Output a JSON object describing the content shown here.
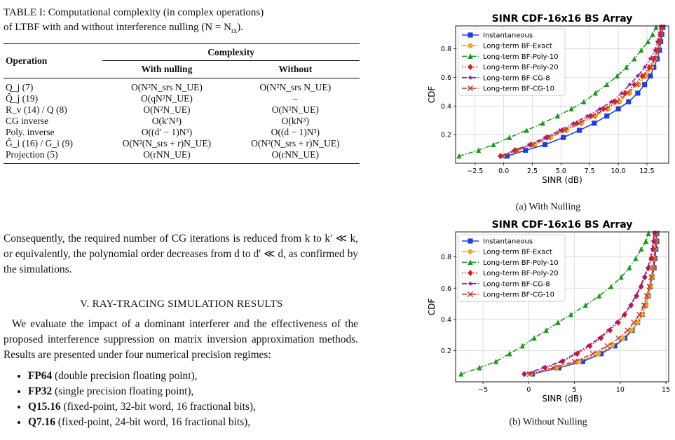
{
  "table": {
    "caption_line1": "TABLE I: Computational complexity (in complex operations)",
    "caption_line2": "of LTBF with and without interference nulling (N = N",
    "caption_sub": "rx",
    "caption_end": ").",
    "header": {
      "operation": "Operation",
      "complexity": "Complexity",
      "with": "With nulling",
      "without": "Without"
    },
    "rows": [
      {
        "op": "Q_j (7)",
        "with": "O(N²N_srs N_UE)",
        "without": "O(N²N_srs N_UE)"
      },
      {
        "op": "Q̂_j (19)",
        "with": "O(qN²N_UE)",
        "without": "–"
      },
      {
        "op": "R_v (14) / Q (8)",
        "with": "O(N²N_UE)",
        "without": "O(N²N_UE)"
      },
      {
        "op": "CG inverse",
        "with": "O(k′N³)",
        "without": "O(kN³)"
      },
      {
        "op": "Poly. inverse",
        "with": "O((d′ − 1)N³)",
        "without": "O((d − 1)N³)"
      },
      {
        "op": "Ĝ_i (16) / G_i (9)",
        "with": "O(N²(N_srs + r)N_UE)",
        "without": "O(N²(N_srs + r)N_UE)"
      },
      {
        "op": "Projection (5)",
        "with": "O(rNN_UE)",
        "without": "O(rNN_UE)"
      }
    ]
  },
  "paragraph1": "Consequently, the required number of CG iterations is reduced from k to k′ ≪ k, or equivalently, the polynomial order decreases from d to d′ ≪ d, as confirmed by the simulations.",
  "section_title": "V. RAY-TRACING SIMULATION RESULTS",
  "paragraph2": "We evaluate the impact of a dominant interferer and the effectiveness of the proposed interference suppression on matrix inversion approximation methods. Results are presented under four numerical precision regimes:",
  "bullets": [
    {
      "bold": "FP64",
      "rest": " (double precision floating point),"
    },
    {
      "bold": "FP32",
      "rest": " (single precision floating point),"
    },
    {
      "bold": "Q15.16",
      "rest": " (fixed-point, 32-bit word, 16 fractional bits),"
    },
    {
      "bold": "Q7.16",
      "rest": " (fixed-point, 24-bit word, 16 fractional bits),"
    }
  ],
  "colors": {
    "instantaneous": "#1f3fe0",
    "exact": "#f5a623",
    "poly10": "#1a9a1a",
    "poly20": "#e8141a",
    "cg8": "#8b1a9a",
    "cg10": "#c0392b"
  },
  "chart_data": [
    {
      "type": "line",
      "title": "SINR CDF-16x16 BS Array",
      "subcaption": "(a) With Nulling",
      "xlabel": "SINR (dB)",
      "ylabel": "CDF",
      "xlim": [
        -4.2,
        14.4
      ],
      "ylim": [
        0.0,
        0.96
      ],
      "xticks": [
        -2.5,
        0.0,
        2.5,
        5.0,
        7.5,
        10.0,
        12.5
      ],
      "xtick_labels": [
        "−2.5",
        "0.0",
        "2.5",
        "5.0",
        "7.5",
        "10.0",
        "12.5"
      ],
      "yticks": [
        0.2,
        0.4,
        0.6,
        0.8
      ],
      "ytick_labels": [
        "0.2",
        "0.4",
        "0.6",
        "0.8"
      ],
      "grid": true,
      "legend": "top-left",
      "y": [
        0.05,
        0.09,
        0.13,
        0.18,
        0.23,
        0.28,
        0.33,
        0.38,
        0.43,
        0.49,
        0.55,
        0.61,
        0.67,
        0.73,
        0.79,
        0.85,
        0.9,
        0.95
      ],
      "series": [
        {
          "name": "Instantaneous",
          "style": "square-solid",
          "colorKey": "instantaneous",
          "x": [
            0.3,
            1.9,
            3.6,
            5.2,
            6.6,
            7.9,
            9.0,
            10.0,
            10.9,
            11.7,
            12.3,
            12.8,
            13.1,
            13.4,
            13.6,
            13.7,
            13.8,
            13.9
          ]
        },
        {
          "name": "Long-term BF-Exact",
          "style": "circle-dashdot",
          "colorKey": "exact",
          "x": [
            -0.2,
            1.2,
            2.7,
            4.1,
            5.5,
            6.8,
            8.0,
            9.1,
            10.1,
            11.0,
            11.8,
            12.4,
            12.9,
            13.2,
            13.4,
            13.6,
            13.7,
            13.8
          ]
        },
        {
          "name": "Long-term BF-Poly-10",
          "style": "triangle-dashdot",
          "colorKey": "poly10",
          "x": [
            -3.9,
            -2.2,
            -0.9,
            0.5,
            2.0,
            3.4,
            4.7,
            5.9,
            7.0,
            8.0,
            9.0,
            9.9,
            10.7,
            11.4,
            12.0,
            12.6,
            13.0,
            13.3
          ]
        },
        {
          "name": "Long-term BF-Poly-20",
          "style": "diamond-dotted",
          "colorKey": "poly20",
          "x": [
            -0.3,
            1.0,
            2.4,
            3.8,
            5.1,
            6.4,
            7.6,
            8.7,
            9.7,
            10.6,
            11.4,
            12.1,
            12.7,
            13.1,
            13.4,
            13.6,
            13.7,
            13.8
          ]
        },
        {
          "name": "Long-term BF-CG-8",
          "style": "star-dashdot",
          "colorKey": "cg8",
          "x": [
            -0.2,
            0.9,
            2.2,
            3.6,
            4.9,
            6.1,
            7.3,
            8.4,
            9.4,
            10.3,
            11.0,
            11.7,
            12.3,
            12.8,
            13.2,
            13.4,
            13.6,
            13.7
          ]
        },
        {
          "name": "Long-term BF-CG-10",
          "style": "x-dashdot",
          "colorKey": "cg10",
          "x": [
            -0.1,
            1.1,
            2.5,
            3.9,
            5.3,
            6.6,
            7.8,
            8.9,
            9.9,
            10.8,
            11.6,
            12.2,
            12.8,
            13.2,
            13.4,
            13.6,
            13.7,
            13.8
          ]
        }
      ]
    },
    {
      "type": "line",
      "title": "SINR CDF-16x16 BS Array",
      "subcaption": "(b) Without Nulling",
      "xlabel": "SINR (dB)",
      "ylabel": "CDF",
      "xlim": [
        -8.0,
        15.3
      ],
      "ylim": [
        0.0,
        0.96
      ],
      "xticks": [
        -5,
        0,
        5,
        10,
        15
      ],
      "xtick_labels": [
        "−5",
        "0",
        "5",
        "10",
        "15"
      ],
      "yticks": [
        0.2,
        0.4,
        0.6,
        0.8
      ],
      "ytick_labels": [
        "0.2",
        "0.4",
        "0.6",
        "0.8"
      ],
      "grid": true,
      "legend": "top-left",
      "y": [
        0.05,
        0.09,
        0.13,
        0.18,
        0.23,
        0.28,
        0.33,
        0.38,
        0.43,
        0.49,
        0.55,
        0.61,
        0.67,
        0.73,
        0.79,
        0.85,
        0.9,
        0.95
      ],
      "series": [
        {
          "name": "Instantaneous",
          "style": "square-solid",
          "colorKey": "instantaneous",
          "x": [
            0.4,
            3.3,
            5.9,
            7.9,
            9.4,
            10.5,
            11.3,
            11.9,
            12.4,
            12.8,
            13.1,
            13.3,
            13.5,
            13.7,
            13.8,
            13.9,
            14.0,
            14.0
          ]
        },
        {
          "name": "Long-term BF-Exact",
          "style": "circle-dashdot",
          "colorKey": "exact",
          "x": [
            0.2,
            3.0,
            5.5,
            7.6,
            9.1,
            10.3,
            11.2,
            11.9,
            12.4,
            12.8,
            13.1,
            13.3,
            13.5,
            13.6,
            13.7,
            13.8,
            13.9,
            13.9
          ]
        },
        {
          "name": "Long-term BF-Poly-10",
          "style": "triangle-dashdot",
          "colorKey": "poly10",
          "x": [
            -7.4,
            -5.4,
            -3.6,
            -2.1,
            -0.7,
            0.6,
            1.9,
            3.2,
            4.6,
            6.2,
            7.7,
            9.0,
            10.1,
            11.0,
            11.7,
            12.3,
            12.8,
            13.1
          ]
        },
        {
          "name": "Long-term BF-Poly-20",
          "style": "diamond-dotted",
          "colorKey": "poly20",
          "x": [
            -0.5,
            1.8,
            3.7,
            5.3,
            6.7,
            7.9,
            8.9,
            9.8,
            10.5,
            11.2,
            11.8,
            12.3,
            12.7,
            13.1,
            13.4,
            13.6,
            13.7,
            13.8
          ]
        },
        {
          "name": "Long-term BF-CG-8",
          "style": "star-dashdot",
          "colorKey": "cg8",
          "x": [
            -0.4,
            1.6,
            3.5,
            5.1,
            6.5,
            7.7,
            8.7,
            9.6,
            10.4,
            11.1,
            11.7,
            12.2,
            12.6,
            13.0,
            13.3,
            13.5,
            13.6,
            13.7
          ]
        },
        {
          "name": "Long-term BF-CG-10",
          "style": "x-dashdot",
          "colorKey": "cg10",
          "x": [
            0.1,
            2.7,
            5.0,
            7.0,
            8.6,
            9.8,
            10.8,
            11.5,
            12.1,
            12.6,
            12.9,
            13.2,
            13.4,
            13.6,
            13.7,
            13.8,
            13.9,
            13.9
          ]
        }
      ]
    }
  ]
}
